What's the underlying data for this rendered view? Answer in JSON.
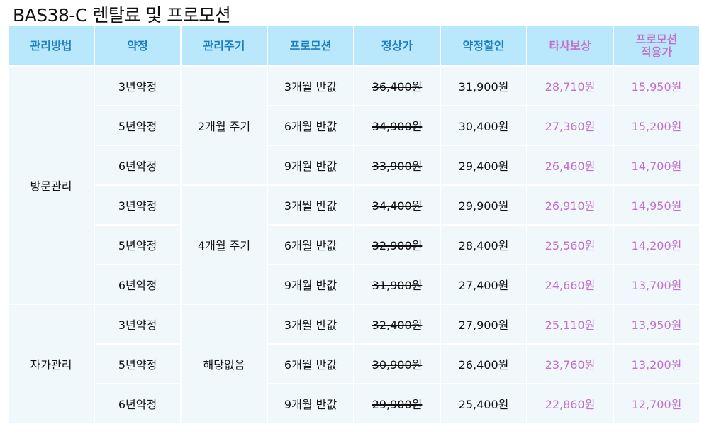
{
  "title": "BAS38-C 렌탈료 및 프로모션",
  "headers": [
    "관리방법",
    "약정",
    "관리주기",
    "프로모션",
    "정상가",
    "약정할인",
    "타사보상",
    "프로모션\n적용가"
  ],
  "header_line1": "프로모션",
  "header_line2": "적용가",
  "colors": {
    "header_bg": "#b9e8fd",
    "header_text": "#1f7fbf",
    "accent_pink": "#c46fc9",
    "cell_bg": "#f0f8fc"
  },
  "groups": [
    {
      "method": "방문관리",
      "cycles": [
        {
          "cycle": "2개월 주기",
          "rows": [
            {
              "term": "3년약정",
              "promo": "3개월 반값",
              "regular": "36,400원",
              "discount": "31,900원",
              "compensation": "28,710원",
              "final": "15,950원"
            },
            {
              "term": "5년약정",
              "promo": "6개월 반값",
              "regular": "34,900원",
              "discount": "30,400원",
              "compensation": "27,360원",
              "final": "15,200원"
            },
            {
              "term": "6년약정",
              "promo": "9개월 반값",
              "regular": "33,900원",
              "discount": "29,400원",
              "compensation": "26,460원",
              "final": "14,700원"
            }
          ]
        },
        {
          "cycle": "4개월 주기",
          "rows": [
            {
              "term": "3년약정",
              "promo": "3개월 반값",
              "regular": "34,400원",
              "discount": "29,900원",
              "compensation": "26,910원",
              "final": "14,950원"
            },
            {
              "term": "5년약정",
              "promo": "6개월 반값",
              "regular": "32,900원",
              "discount": "28,400원",
              "compensation": "25,560원",
              "final": "14,200원"
            },
            {
              "term": "6년약정",
              "promo": "9개월 반값",
              "regular": "31,900원",
              "discount": "27,400원",
              "compensation": "24,660원",
              "final": "13,700원"
            }
          ]
        }
      ]
    },
    {
      "method": "자가관리",
      "cycles": [
        {
          "cycle": "해당없음",
          "rows": [
            {
              "term": "3년약정",
              "promo": "3개월 반값",
              "regular": "32,400원",
              "discount": "27,900원",
              "compensation": "25,110원",
              "final": "13,950원"
            },
            {
              "term": "5년약정",
              "promo": "6개월 반값",
              "regular": "30,900원",
              "discount": "26,400원",
              "compensation": "23,760원",
              "final": "13,200원"
            },
            {
              "term": "6년약정",
              "promo": "9개월 반값",
              "regular": "29,900원",
              "discount": "25,400원",
              "compensation": "22,860원",
              "final": "12,700원"
            }
          ]
        }
      ]
    }
  ]
}
